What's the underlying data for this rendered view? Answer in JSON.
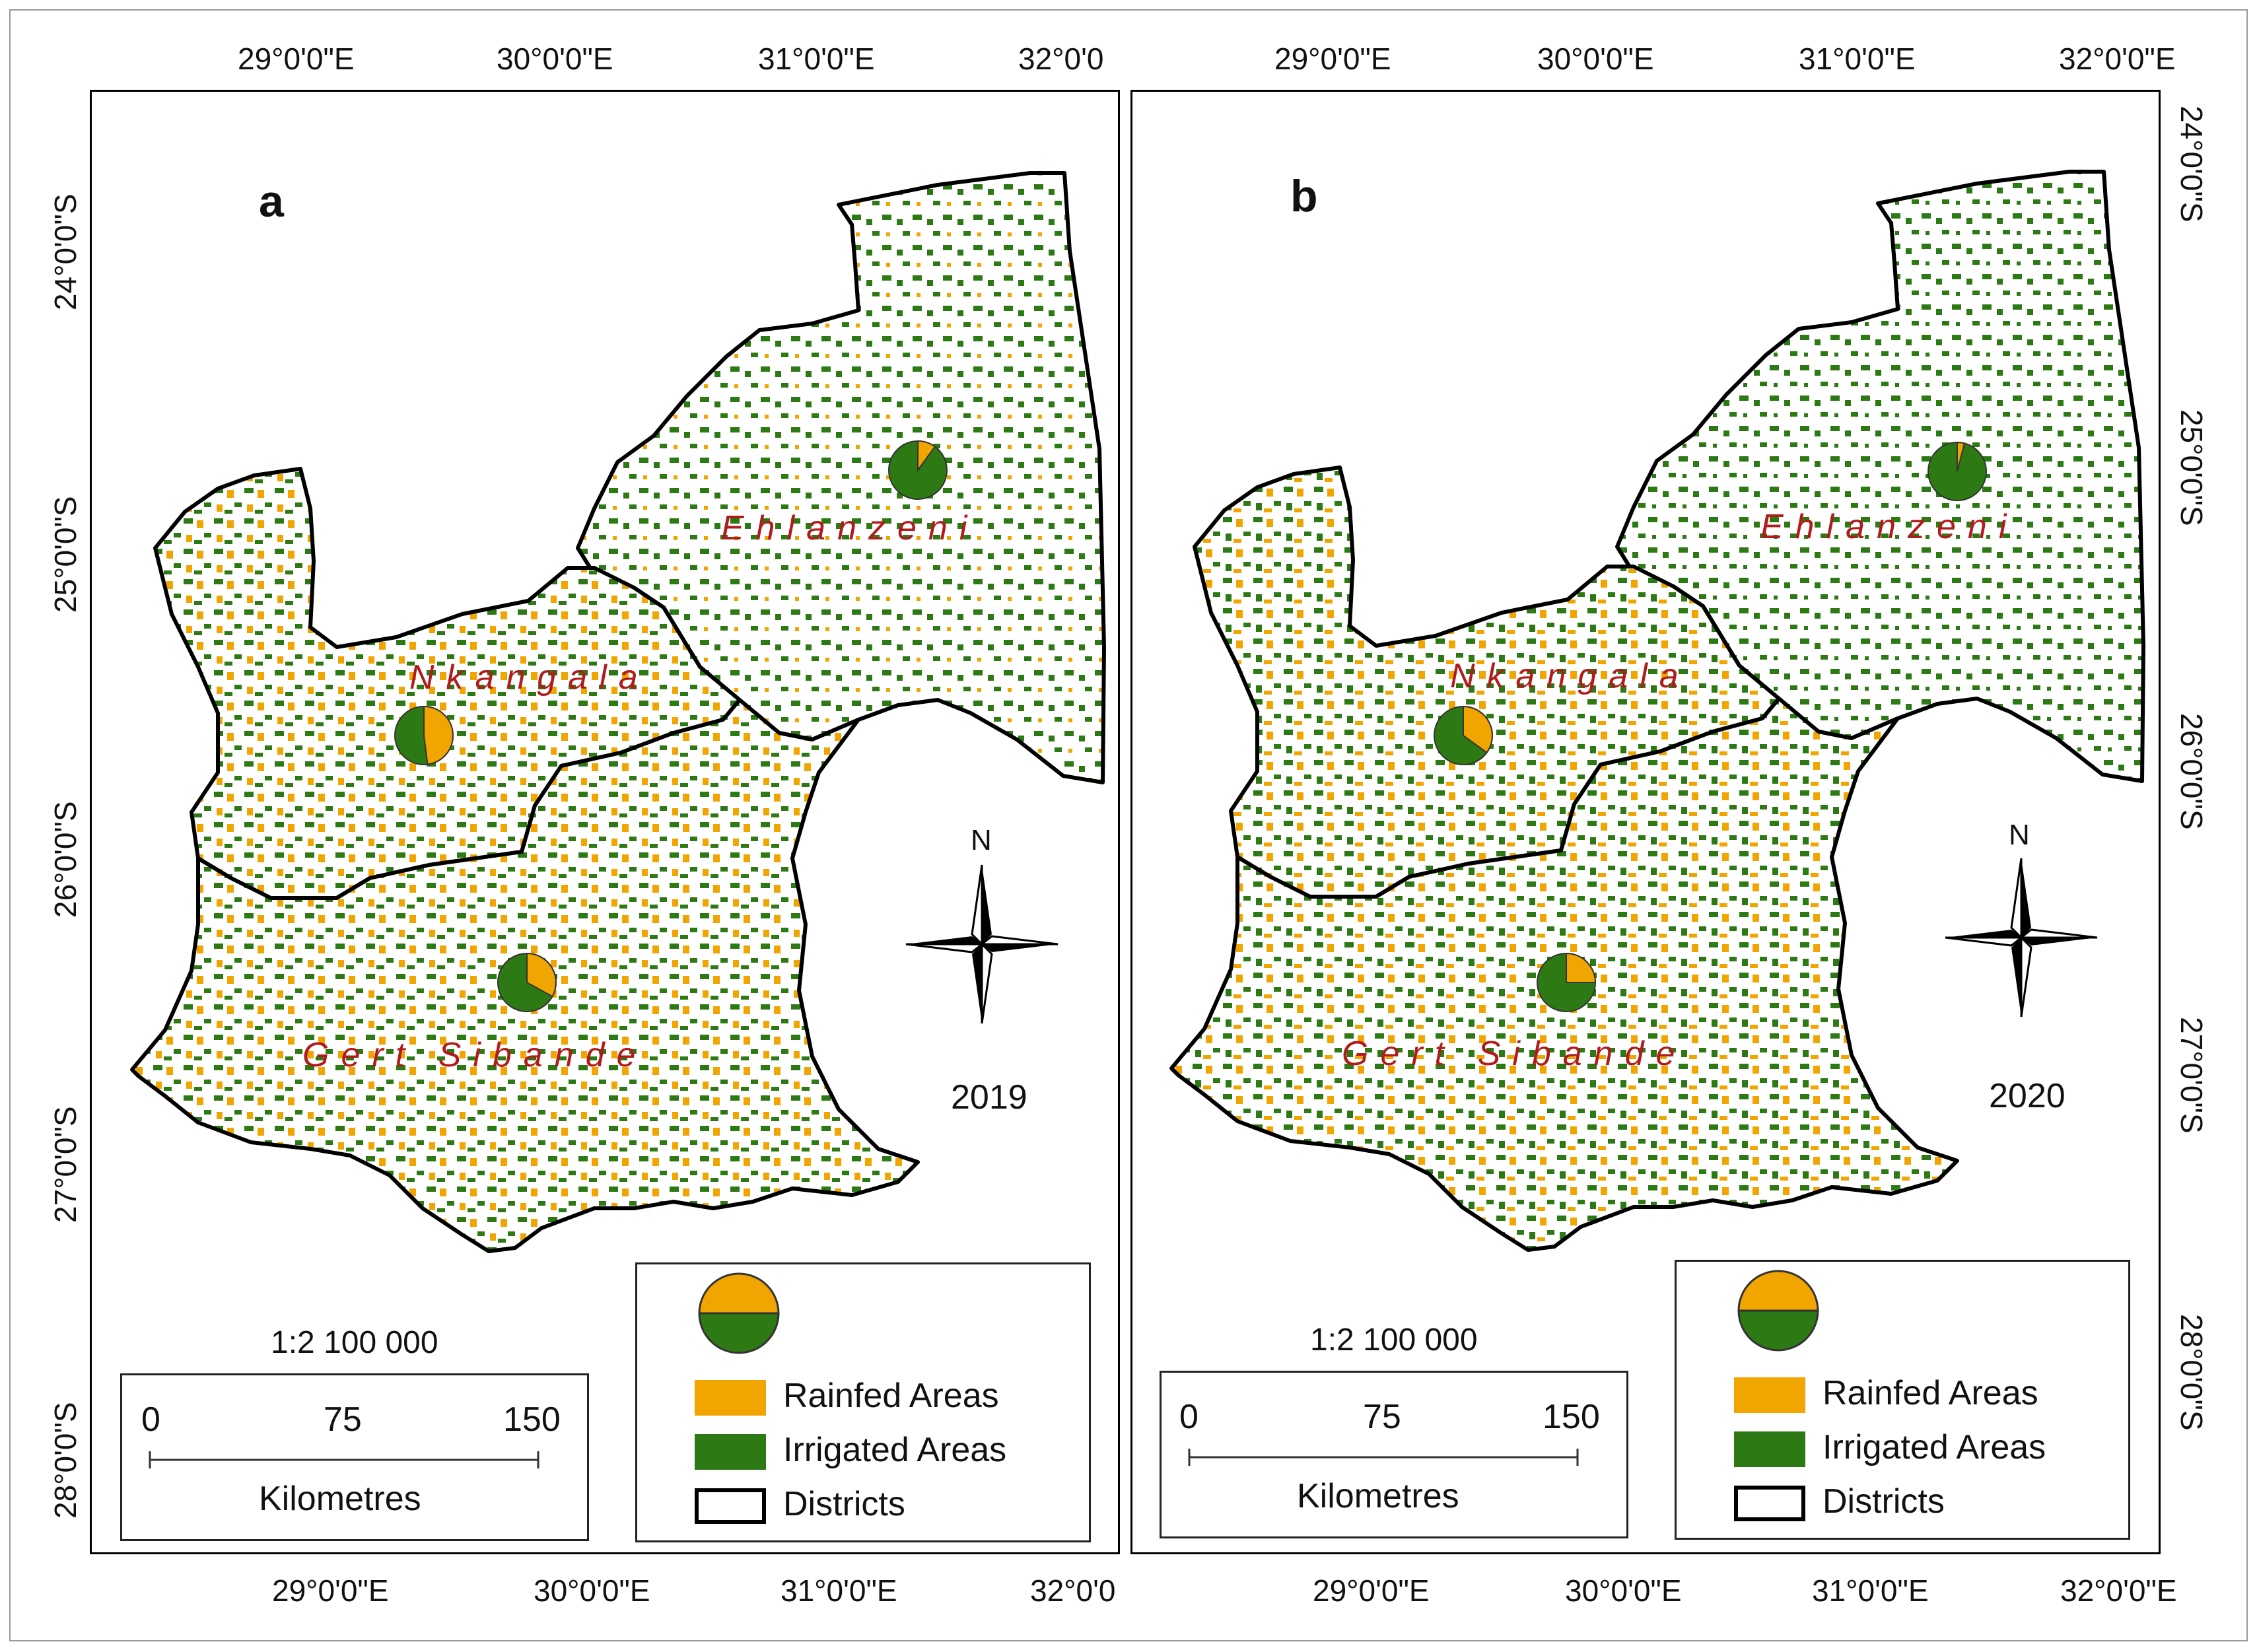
{
  "colors": {
    "rainfed": "#f0a500",
    "irrigated": "#2d7a14",
    "district_border": "#000000",
    "district_label": "#b01c1c"
  },
  "panels": [
    {
      "letter": "a",
      "year": "2019",
      "top_lon_labels": [
        "29°0'0\"E",
        "30°0'0\"E",
        "31°0'0\"E",
        "32°0'0"
      ],
      "bottom_lon_labels": [
        "29°0'0\"E",
        "30°0'0\"E",
        "31°0'0\"E",
        "32°0'0"
      ],
      "lat_labels": [
        "24°0'0\"S",
        "25°0'0\"S",
        "26°0'0\"S",
        "27°0'0\"S",
        "28°0'0\"S"
      ],
      "districts": [
        "Ehlanzeni",
        "Nkangala",
        "Gert Sibande"
      ],
      "pies": {
        "Ehlanzeni": 0.1,
        "Nkangala": 0.48,
        "Gert Sibande": 0.33
      },
      "scale": {
        "ratio": "1:2 100 000",
        "ticks": [
          "0",
          "75",
          "150"
        ],
        "unit": "Kilometres"
      },
      "legend": {
        "rainfed": "Rainfed Areas",
        "irrigated": "Irrigated Areas",
        "districts": "Districts"
      },
      "north": "N"
    },
    {
      "letter": "b",
      "year": "2020",
      "top_lon_labels": [
        "29°0'0\"E",
        "30°0'0\"E",
        "31°0'0\"E",
        "32°0'0\"E"
      ],
      "bottom_lon_labels": [
        "29°0'0\"E",
        "30°0'0\"E",
        "31°0'0\"E",
        "32°0'0\"E"
      ],
      "lat_labels": [
        "24°0'0\"S",
        "25°0'0\"S",
        "26°0'0\"S",
        "27°0'0\"S",
        "28°0'0\"S"
      ],
      "districts": [
        "Ehlanzeni",
        "Nkangala",
        "Gert Sibande"
      ],
      "pies": {
        "Ehlanzeni": 0.04,
        "Nkangala": 0.35,
        "Gert Sibande": 0.25
      },
      "scale": {
        "ratio": "1:2 100 000",
        "ticks": [
          "0",
          "75",
          "150"
        ],
        "unit": "Kilometres"
      },
      "legend": {
        "rainfed": "Rainfed Areas",
        "irrigated": "Irrigated Areas",
        "districts": "Districts"
      },
      "north": "N"
    }
  ]
}
